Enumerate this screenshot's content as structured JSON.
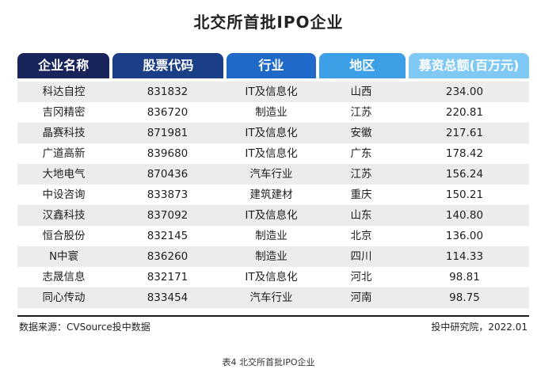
{
  "title": "北交所首批IPO企业",
  "headers": [
    "企业名称",
    "股票代码",
    "行业",
    "地区",
    "募资总额(百万元)"
  ],
  "rows": [
    [
      "科达自控",
      "831832",
      "IT及信息化",
      "山西",
      "234.00"
    ],
    [
      "吉冈精密",
      "836720",
      "制造业",
      "江苏",
      "220.81"
    ],
    [
      "晶赛科技",
      "871981",
      "IT及信息化",
      "安徽",
      "217.61"
    ],
    [
      "广道高新",
      "839680",
      "IT及信息化",
      "广东",
      "178.42"
    ],
    [
      "大地电气",
      "870436",
      "汽车行业",
      "江苏",
      "156.24"
    ],
    [
      "中设咨询",
      "833873",
      "建筑建材",
      "重庆",
      "150.21"
    ],
    [
      "汉鑫科技",
      "837092",
      "IT及信息化",
      "山东",
      "140.80"
    ],
    [
      "恒合股份",
      "832145",
      "制造业",
      "北京",
      "136.00"
    ],
    [
      "N中寰",
      "836260",
      "制造业",
      "四川",
      "114.33"
    ],
    [
      "志晟信息",
      "832171",
      "IT及信息化",
      "河北",
      "98.81"
    ],
    [
      "同心传动",
      "833454",
      "汽车行业",
      "河南",
      "98.75"
    ]
  ],
  "footer": {
    "source": "数据来源：CVSource投中数据",
    "credit": "投中研究院，2022.01"
  },
  "caption": "表4 北交所首批IPO企业",
  "colors": {
    "header_1": "#19245a",
    "header_2": "#1a3f86",
    "header_3": "#1f69c8",
    "header_4": "#3d9fe6",
    "header_5": "#7fc9f4",
    "row_stripe": "#ececec"
  }
}
